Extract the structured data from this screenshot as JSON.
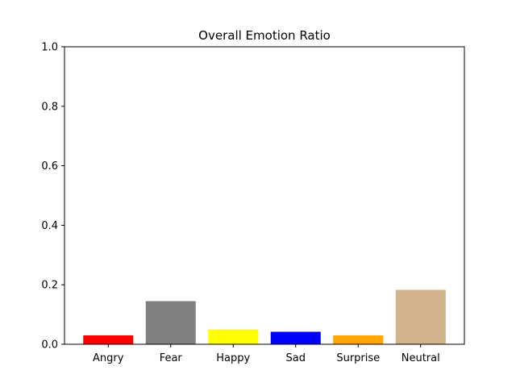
{
  "chart_data": {
    "type": "bar",
    "title": "Overall Emotion Ratio",
    "xlabel": "",
    "ylabel": "",
    "categories": [
      "Angry",
      "Fear",
      "Happy",
      "Sad",
      "Surprise",
      "Neutral"
    ],
    "values": [
      0.03,
      0.145,
      0.05,
      0.042,
      0.03,
      0.183
    ],
    "colors": [
      "#ff0000",
      "#808080",
      "#ffff00",
      "#0000ff",
      "#ffa500",
      "#d2b48c"
    ],
    "ylim": [
      0,
      1.0
    ],
    "yticks": [
      "0.0",
      "0.2",
      "0.4",
      "0.6",
      "0.8",
      "1.0"
    ],
    "grid": false,
    "legend": "none"
  }
}
